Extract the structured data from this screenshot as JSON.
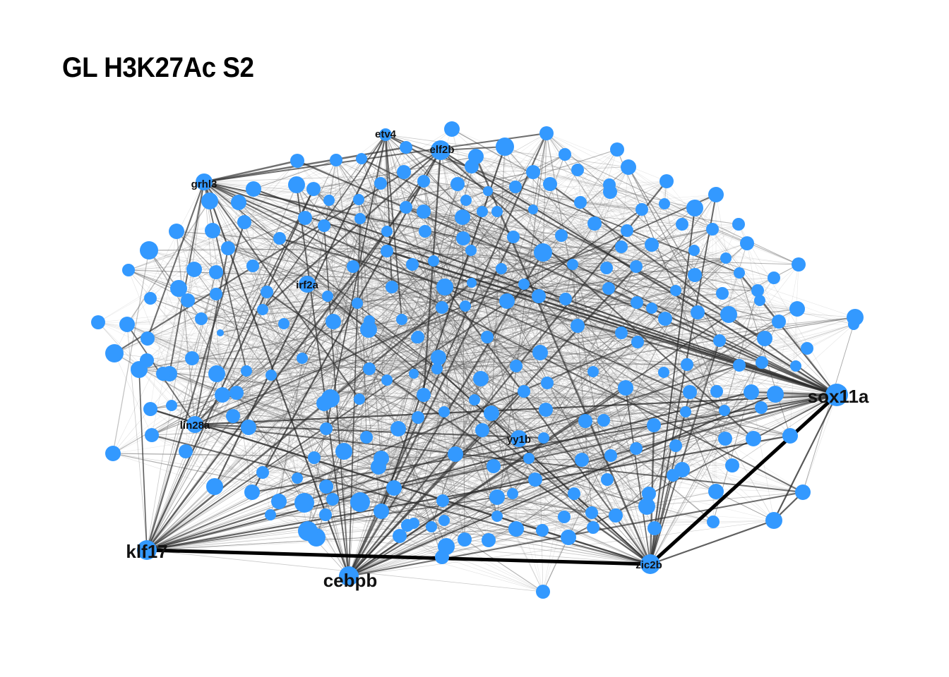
{
  "title": "GL H3K27Ac S2",
  "colors": {
    "node": "#3399ff",
    "edge_dark": "#000000",
    "edge_light": "#8a8a8a",
    "label": "#111111",
    "background": "#ffffff"
  },
  "labeled_nodes": [
    {
      "id": "etv4",
      "label": "etv4",
      "size": "small"
    },
    {
      "id": "elf2b",
      "label": "elf2b",
      "size": "small"
    },
    {
      "id": "grhl3",
      "label": "grhl3",
      "size": "small"
    },
    {
      "id": "irf2a",
      "label": "irf2a",
      "size": "small"
    },
    {
      "id": "lin28a",
      "label": "lin28a",
      "size": "small"
    },
    {
      "id": "yy1b",
      "label": "yy1b",
      "size": "small"
    },
    {
      "id": "zic2b",
      "label": "zic2b",
      "size": "small"
    },
    {
      "id": "sox11a",
      "label": "sox11a",
      "size": "large"
    },
    {
      "id": "klf17",
      "label": "klf17",
      "size": "large"
    },
    {
      "id": "cebpb",
      "label": "cebpb",
      "size": "large"
    }
  ],
  "highlighted_edges": [
    {
      "source": "klf17",
      "target": "zic2b"
    },
    {
      "source": "zic2b",
      "target": "sox11a"
    }
  ]
}
